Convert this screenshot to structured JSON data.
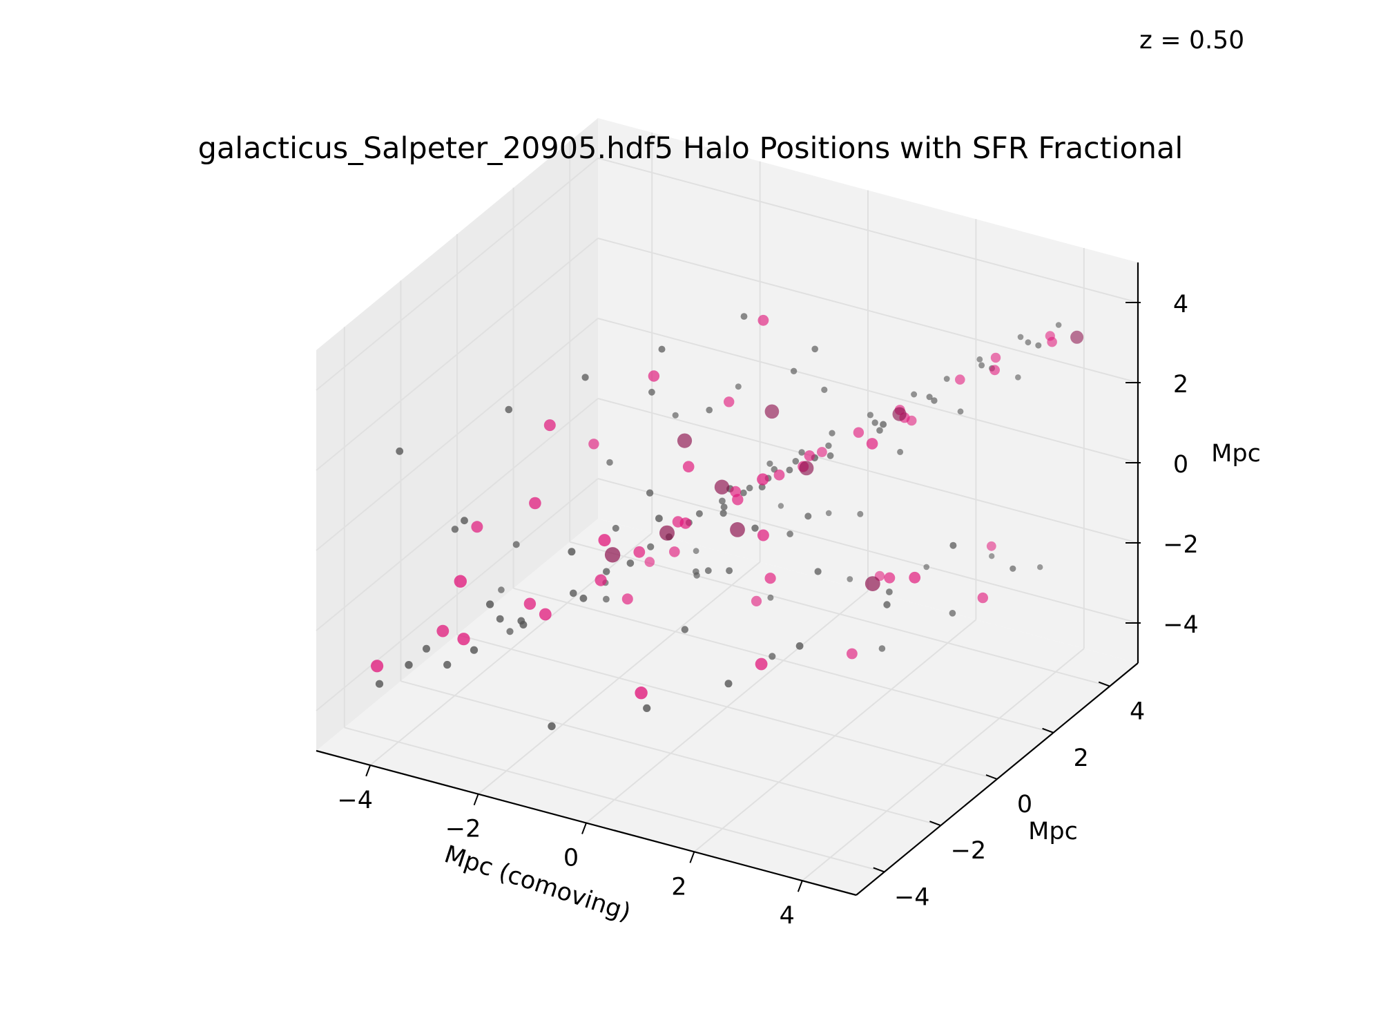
{
  "page": {
    "redshift_label": "z = 0.50"
  },
  "chart_data": {
    "type": "scatter",
    "projection": "3d",
    "title": "galacticus_Salpeter_20905.hdf5 Halo Positions with SFR Fractional",
    "xlabel": "Mpc (comoving)",
    "ylabel": "Mpc",
    "zlabel": "Mpc",
    "xlim": [
      -5,
      5
    ],
    "ylim": [
      -5,
      5
    ],
    "zlim": [
      -5,
      5
    ],
    "x_ticks": [
      "−4",
      "−2",
      "0",
      "2",
      "4"
    ],
    "y_ticks": [
      "−4",
      "−2",
      "0",
      "2",
      "4"
    ],
    "z_ticks": [
      "−4",
      "−2",
      "0",
      "2",
      "4"
    ],
    "grid": true,
    "colors": {
      "pane": "#f2f2f2",
      "pane_side": "#ebebeb",
      "grid": "#e0e0e0",
      "halo": "#555555",
      "star_forming": "#e0167a",
      "star_forming_dark": "#8a0d4a"
    },
    "series": [
      {
        "role": "halos",
        "points": [
          [
            -4.3,
            -4.1,
            -3.6
          ],
          [
            -3.9,
            -3.2,
            -3.1
          ],
          [
            -3.6,
            -4.4,
            -2.7
          ],
          [
            -3.2,
            -3.8,
            -2.9
          ],
          [
            -2.9,
            -2.5,
            -2.4
          ],
          [
            -2.6,
            -4.0,
            -2.2
          ],
          [
            -2.3,
            -2.9,
            -2.0
          ],
          [
            -2.0,
            -3.4,
            -1.7
          ],
          [
            -1.7,
            -2.2,
            -1.5
          ],
          [
            -1.4,
            -1.6,
            -1.2
          ],
          [
            -1.2,
            -2.8,
            -1.1
          ],
          [
            -1.0,
            -0.8,
            -0.9
          ],
          [
            -0.8,
            -1.9,
            -0.6
          ],
          [
            -0.6,
            -0.2,
            -0.5
          ],
          [
            -0.5,
            -1.1,
            -0.3
          ],
          [
            -0.3,
            0.4,
            -0.2
          ],
          [
            -0.2,
            -0.6,
            0.1
          ],
          [
            0.0,
            0.8,
            0.0
          ],
          [
            0.1,
            -0.3,
            0.2
          ],
          [
            0.2,
            0.2,
            0.3
          ],
          [
            0.3,
            1.1,
            0.4
          ],
          [
            0.4,
            -0.9,
            0.5
          ],
          [
            0.5,
            0.5,
            0.6
          ],
          [
            0.6,
            1.5,
            0.7
          ],
          [
            0.7,
            -0.1,
            0.8
          ],
          [
            0.8,
            0.9,
            0.9
          ],
          [
            0.9,
            2.0,
            1.0
          ],
          [
            1.0,
            0.3,
            1.1
          ],
          [
            1.2,
            1.3,
            1.2
          ],
          [
            1.4,
            2.4,
            1.4
          ],
          [
            1.6,
            0.6,
            1.5
          ],
          [
            1.8,
            1.8,
            1.7
          ],
          [
            2.0,
            2.8,
            1.9
          ],
          [
            2.2,
            1.2,
            2.0
          ],
          [
            2.4,
            3.2,
            2.2
          ],
          [
            2.6,
            2.2,
            2.4
          ],
          [
            2.8,
            3.6,
            2.6
          ],
          [
            3.0,
            1.6,
            2.8
          ],
          [
            3.2,
            2.9,
            3.0
          ],
          [
            3.4,
            3.9,
            3.2
          ],
          [
            3.6,
            2.5,
            3.3
          ],
          [
            3.8,
            3.4,
            3.5
          ],
          [
            4.0,
            4.1,
            3.6
          ],
          [
            4.2,
            3.0,
            3.8
          ],
          [
            -3.5,
            -1.0,
            -3.8
          ],
          [
            -2.5,
            0.5,
            -3.5
          ],
          [
            -1.5,
            1.8,
            -3.3
          ],
          [
            -0.5,
            2.5,
            -3.9
          ],
          [
            0.5,
            3.4,
            -3.6
          ],
          [
            1.5,
            4.2,
            -3.4
          ],
          [
            2.5,
            4.6,
            -3.0
          ],
          [
            3.5,
            4.4,
            -2.8
          ],
          [
            -4.5,
            -3.0,
            1.5
          ],
          [
            -3.0,
            -2.0,
            2.5
          ],
          [
            -2.0,
            -1.2,
            3.2
          ],
          [
            -1.0,
            -0.4,
            3.8
          ],
          [
            0.0,
            0.6,
            4.4
          ],
          [
            1.0,
            1.2,
            3.6
          ],
          [
            -1.5,
            0.2,
            2.2
          ],
          [
            -0.8,
            0.9,
            1.6
          ],
          [
            0.4,
            1.6,
            2.6
          ],
          [
            1.3,
            -1.5,
            0.8
          ],
          [
            2.1,
            -0.8,
            -0.4
          ],
          [
            2.9,
            0.2,
            -1.2
          ],
          [
            3.6,
            1.1,
            -2.0
          ],
          [
            4.3,
            1.9,
            -1.1
          ],
          [
            -2.8,
            1.2,
            -0.6
          ],
          [
            -2.0,
            2.0,
            0.4
          ],
          [
            -1.2,
            2.7,
            1.0
          ],
          [
            -3.8,
            -0.2,
            -2.2
          ],
          [
            -4.1,
            -1.8,
            -1.0
          ],
          [
            -3.3,
            -3.0,
            0.2
          ],
          [
            -2.2,
            -4.2,
            -0.8
          ],
          [
            -1.0,
            -3.6,
            0.6
          ],
          [
            0.2,
            -2.8,
            1.4
          ],
          [
            1.1,
            -2.0,
            2.0
          ],
          [
            2.3,
            -1.3,
            2.8
          ],
          [
            3.1,
            -0.4,
            3.4
          ],
          [
            0.9,
            3.0,
            -1.6
          ],
          [
            -0.1,
            3.8,
            -2.4
          ],
          [
            -0.9,
            -4.5,
            -3.2
          ],
          [
            0.6,
            -4.0,
            -2.5
          ],
          [
            1.8,
            -3.4,
            -1.8
          ],
          [
            2.7,
            -2.6,
            -1.0
          ],
          [
            3.9,
            -1.8,
            0.0
          ],
          [
            4.5,
            -0.6,
            1.0
          ],
          [
            -4.6,
            0.8,
            -4.2
          ],
          [
            -3.4,
            2.2,
            -4.4
          ],
          [
            -2.4,
            3.5,
            -4.0
          ],
          [
            -1.3,
            4.4,
            -3.0
          ],
          [
            0.3,
            -0.5,
            -1.2
          ],
          [
            -0.4,
            0.1,
            -1.8
          ],
          [
            0.8,
            0.7,
            -0.8
          ],
          [
            -0.7,
            -1.4,
            0.9
          ],
          [
            1.5,
            0.0,
            0.3
          ],
          [
            -1.8,
            -0.5,
            -0.9
          ],
          [
            0.0,
            -1.5,
            -2.2
          ],
          [
            1.9,
            2.5,
            0.6
          ],
          [
            2.6,
            3.3,
            1.4
          ],
          [
            3.3,
            4.0,
            2.1
          ],
          [
            -0.2,
            1.9,
            -0.1
          ],
          [
            0.6,
            2.3,
            1.8
          ],
          [
            -1.1,
            1.0,
            -2.6
          ],
          [
            1.2,
            -0.7,
            -2.9
          ],
          [
            2.4,
            0.9,
            -3.2
          ]
        ]
      },
      {
        "role": "star_forming",
        "points": [
          [
            -4.5,
            -3.8,
            -3.4
          ],
          [
            -3.7,
            -3.0,
            -2.7
          ],
          [
            -3.0,
            -3.6,
            -2.3
          ],
          [
            -2.4,
            -2.4,
            -1.9
          ],
          [
            -1.8,
            -3.0,
            -1.6
          ],
          [
            -1.4,
            -1.8,
            -1.3
          ],
          [
            -1.0,
            -1.2,
            -0.8
          ],
          [
            -0.7,
            -0.4,
            -0.4
          ],
          [
            -0.3,
            -0.9,
            0.0
          ],
          [
            0.0,
            0.3,
            0.2
          ],
          [
            0.3,
            -0.2,
            0.4
          ],
          [
            0.6,
            0.7,
            0.6
          ],
          [
            0.9,
            1.2,
            0.9
          ],
          [
            1.2,
            0.4,
            1.2
          ],
          [
            1.6,
            1.6,
            1.5
          ],
          [
            2.0,
            2.3,
            1.8
          ],
          [
            2.4,
            1.7,
            2.1
          ],
          [
            2.8,
            2.9,
            2.5
          ],
          [
            3.2,
            3.4,
            2.9
          ],
          [
            3.6,
            2.6,
            3.2
          ],
          [
            4.0,
            3.8,
            3.5
          ],
          [
            4.4,
            3.1,
            3.9
          ],
          [
            -2.0,
            0.3,
            -3.2
          ],
          [
            -0.5,
            2.0,
            -3.7
          ],
          [
            1.0,
            3.5,
            -3.4
          ],
          [
            2.6,
            4.4,
            -2.6
          ],
          [
            -1.2,
            -0.3,
            3.0
          ],
          [
            0.2,
            0.9,
            4.2
          ],
          [
            -2.5,
            -1.5,
            2.0
          ],
          [
            -0.8,
            1.6,
            1.4
          ],
          [
            1.4,
            -1.4,
            0.6
          ],
          [
            2.8,
            0.4,
            -1.0
          ],
          [
            3.9,
            1.6,
            -1.8
          ],
          [
            -3.2,
            1.4,
            -0.4
          ],
          [
            -3.9,
            -1.4,
            -1.1
          ],
          [
            -2.8,
            -4.1,
            -0.5
          ],
          [
            -0.6,
            -3.2,
            0.8
          ],
          [
            1.6,
            -1.8,
            2.3
          ],
          [
            3.0,
            -0.6,
            3.0
          ],
          [
            0.6,
            -4.2,
            -2.0
          ],
          [
            2.2,
            -3.0,
            -1.4
          ],
          [
            4.1,
            -1.2,
            0.4
          ],
          [
            -3.0,
            3.0,
            -4.2
          ],
          [
            0.8,
            0.0,
            -1.5
          ],
          [
            -0.4,
            -0.6,
            1.2
          ],
          [
            1.8,
            3.1,
            1.0
          ],
          [
            -1.6,
            1.2,
            -2.4
          ],
          [
            2.0,
            0.6,
            -3.3
          ],
          [
            0.4,
            2.6,
            0.0
          ],
          [
            -2.2,
            -2.6,
            0.8
          ]
        ]
      },
      {
        "role": "high_sfr",
        "points": [
          [
            -0.8,
            -0.6,
            -0.6
          ],
          [
            -0.2,
            0.2,
            0.3
          ],
          [
            0.4,
            -0.4,
            -0.2
          ],
          [
            1.0,
            0.9,
            0.8
          ],
          [
            -1.6,
            -1.0,
            -1.2
          ],
          [
            2.2,
            1.9,
            2.0
          ],
          [
            4.6,
            3.6,
            3.8
          ],
          [
            0.1,
            1.4,
            1.6
          ],
          [
            2.8,
            -0.2,
            -0.8
          ],
          [
            -1.1,
            0.6,
            0.9
          ]
        ]
      }
    ]
  }
}
